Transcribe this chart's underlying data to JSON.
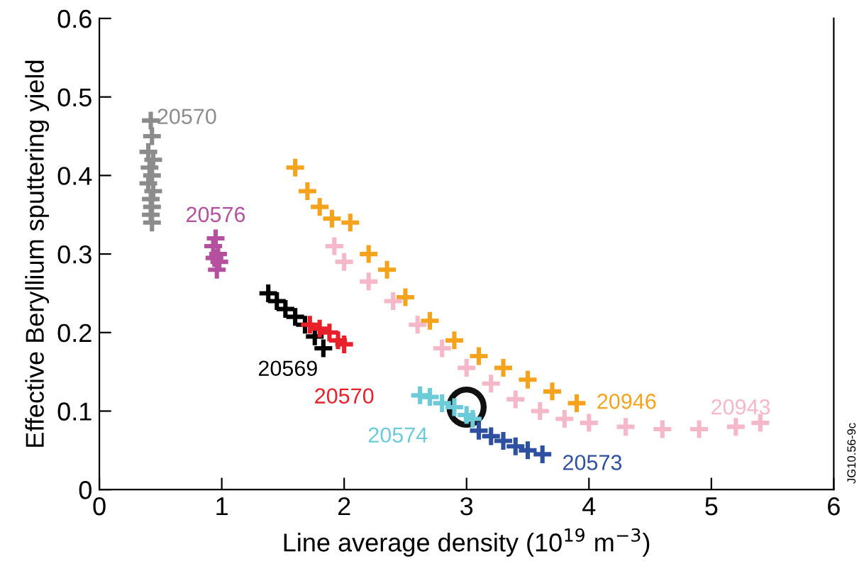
{
  "chart_data": {
    "type": "scatter",
    "xlabel": "Line average density (10$^{19}$ m$^{−3}$)",
    "ylabel": "Effective Beryllium sputtering yield",
    "xlim": [
      0,
      6
    ],
    "xticks": [
      0,
      1,
      2,
      3,
      4,
      5,
      6
    ],
    "ylim": [
      0,
      0.6
    ],
    "yticks": [
      0,
      0.1,
      0.2,
      0.3,
      0.4,
      0.5,
      0.6
    ],
    "grid": false,
    "legend": false,
    "marker": "cross",
    "series": [
      {
        "name": "20570",
        "color": "#8c8c8c",
        "x": [
          0.42,
          0.43,
          0.4,
          0.44,
          0.41,
          0.43,
          0.4,
          0.44,
          0.42,
          0.43,
          0.42,
          0.43
        ],
        "values": [
          0.47,
          0.45,
          0.43,
          0.42,
          0.41,
          0.4,
          0.39,
          0.38,
          0.37,
          0.36,
          0.35,
          0.34
        ]
      },
      {
        "name": "20576",
        "color": "#b5509e",
        "x": [
          0.95,
          0.93,
          0.97,
          0.94,
          0.98,
          0.96
        ],
        "values": [
          0.32,
          0.31,
          0.3,
          0.295,
          0.29,
          0.28
        ]
      },
      {
        "name": "20569",
        "color": "#000000",
        "x": [
          1.38,
          1.45,
          1.52,
          1.6,
          1.68,
          1.76,
          1.83
        ],
        "values": [
          0.25,
          0.24,
          0.23,
          0.22,
          0.21,
          0.195,
          0.18
        ]
      },
      {
        "name": "20570",
        "color": "#e8202a",
        "x": [
          1.72,
          1.8,
          1.88,
          1.95,
          2.0
        ],
        "values": [
          0.21,
          0.205,
          0.2,
          0.19,
          0.185
        ]
      },
      {
        "name": "20946",
        "color": "#f5a21c",
        "x": [
          1.6,
          1.7,
          1.8,
          1.9,
          2.05,
          2.2,
          2.35,
          2.5,
          2.7,
          2.9,
          3.1,
          3.3,
          3.5,
          3.7,
          3.9
        ],
        "values": [
          0.41,
          0.38,
          0.36,
          0.345,
          0.34,
          0.3,
          0.28,
          0.245,
          0.215,
          0.19,
          0.17,
          0.155,
          0.14,
          0.125,
          0.11
        ]
      },
      {
        "name": "20943",
        "color": "#f5b8c8",
        "x": [
          1.92,
          2.0,
          2.2,
          2.4,
          2.6,
          2.8,
          3.0,
          3.2,
          3.4,
          3.6,
          3.8,
          4.0,
          4.3,
          4.6,
          4.9,
          5.2,
          5.4
        ],
        "values": [
          0.31,
          0.29,
          0.265,
          0.24,
          0.21,
          0.18,
          0.155,
          0.135,
          0.115,
          0.1,
          0.09,
          0.085,
          0.08,
          0.077,
          0.077,
          0.08,
          0.085
        ]
      },
      {
        "name": "20574",
        "color": "#6bcbd9",
        "x": [
          2.62,
          2.7,
          2.8,
          2.9,
          3.0,
          3.05
        ],
        "values": [
          0.12,
          0.118,
          0.11,
          0.105,
          0.095,
          0.09
        ]
      },
      {
        "name": "20573",
        "color": "#2f4fa0",
        "x": [
          3.1,
          3.2,
          3.3,
          3.4,
          3.5,
          3.62
        ],
        "values": [
          0.075,
          0.068,
          0.062,
          0.055,
          0.05,
          0.045
        ]
      }
    ],
    "annotations": [
      "JG10.56-9c"
    ]
  }
}
